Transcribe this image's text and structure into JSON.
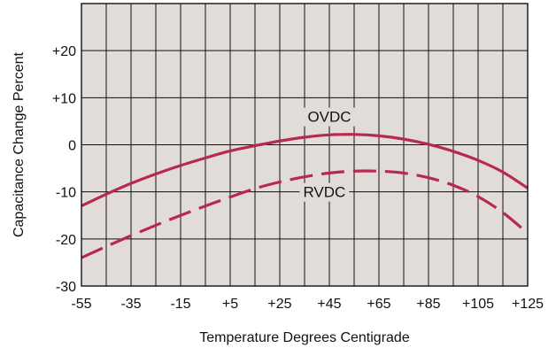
{
  "chart_data": {
    "type": "line",
    "title": "",
    "xlabel": "Temperature Degrees Centigrade",
    "ylabel": "Capacitance Change Percent",
    "xlim": [
      -55,
      125
    ],
    "ylim": [
      -30,
      30
    ],
    "x_ticks": [
      -55,
      -35,
      -15,
      5,
      25,
      45,
      65,
      85,
      105,
      125
    ],
    "x_tick_labels": [
      "-55",
      "-35",
      "-15",
      "+5",
      "+25",
      "+45",
      "+65",
      "+85",
      "+105",
      "+125"
    ],
    "y_ticks": [
      20,
      10,
      0,
      -10,
      -20,
      -30
    ],
    "y_tick_labels": [
      "+20",
      "+10",
      "0",
      "-10",
      "-20",
      "-30"
    ],
    "x_grid_step": 10,
    "y_grid_step": 10,
    "grid": true,
    "legend": "none",
    "colors": {
      "plot_background": "#e2dcd8",
      "grid": "#111111",
      "series": "#b8294f"
    },
    "series": [
      {
        "name": "OVDC",
        "style": "solid",
        "x": [
          -55,
          -45,
          -35,
          -25,
          -15,
          -5,
          5,
          15,
          25,
          35,
          45,
          55,
          65,
          75,
          85,
          95,
          105,
          115,
          125
        ],
        "y": [
          -13,
          -10.5,
          -8.2,
          -6.2,
          -4.4,
          -2.8,
          -1.3,
          -0.2,
          0.8,
          1.6,
          2.1,
          2.2,
          1.9,
          1.2,
          0.1,
          -1.4,
          -3.3,
          -5.8,
          -9.2
        ]
      },
      {
        "name": "RVDC",
        "style": "dashed",
        "x": [
          -55,
          -45,
          -35,
          -25,
          -15,
          -5,
          5,
          15,
          25,
          35,
          45,
          55,
          65,
          75,
          85,
          95,
          105,
          115,
          125
        ],
        "y": [
          -24,
          -21.6,
          -19.3,
          -17.1,
          -15,
          -13,
          -11.1,
          -9.3,
          -7.9,
          -6.8,
          -6,
          -5.6,
          -5.6,
          -6,
          -7,
          -8.6,
          -11,
          -14.4,
          -18.8
        ]
      }
    ],
    "annotations": [
      {
        "text": "OVDC",
        "x": 45,
        "y": 6
      },
      {
        "text": "RVDC",
        "x": 43,
        "y": -10
      }
    ]
  }
}
